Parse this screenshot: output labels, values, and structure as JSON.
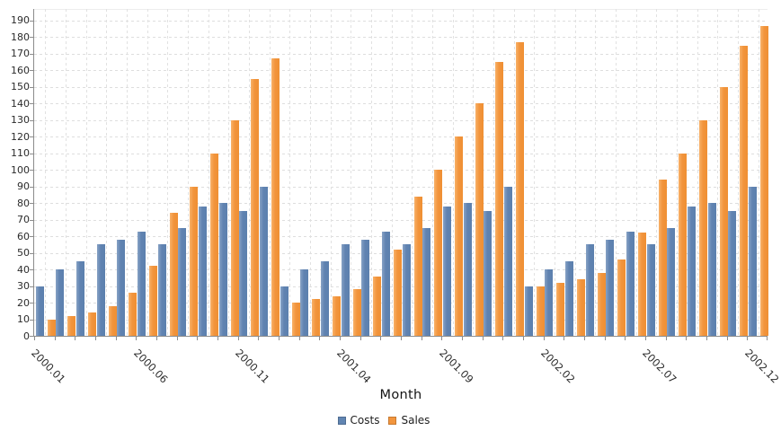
{
  "chart_data": {
    "type": "bar",
    "title": "",
    "xlabel": "Month",
    "ylabel": "",
    "ylim": [
      0,
      197
    ],
    "yticks": [
      0,
      10,
      20,
      30,
      40,
      50,
      60,
      70,
      80,
      90,
      100,
      110,
      120,
      130,
      140,
      150,
      160,
      170,
      180,
      190
    ],
    "grid": true,
    "legend_position": "bottom",
    "categories": [
      "2000.01",
      "2000.02",
      "2000.03",
      "2000.04",
      "2000.05",
      "2000.06",
      "2000.07",
      "2000.08",
      "2000.09",
      "2000.10",
      "2000.11",
      "2000.12",
      "2001.01",
      "2001.02",
      "2001.03",
      "2001.04",
      "2001.05",
      "2001.06",
      "2001.07",
      "2001.08",
      "2001.09",
      "2001.10",
      "2001.11",
      "2001.12",
      "2002.01",
      "2002.02",
      "2002.03",
      "2002.04",
      "2002.05",
      "2002.06",
      "2002.07",
      "2002.08",
      "2002.09",
      "2002.10",
      "2002.11",
      "2002.12"
    ],
    "xtick_labels": [
      "2000.01",
      "2000.06",
      "2000.11",
      "2001.04",
      "2001.09",
      "2002.02",
      "2002.07",
      "2002.12"
    ],
    "series": [
      {
        "name": "Costs",
        "color": "#6185b2",
        "values": [
          30,
          40,
          45,
          55,
          58,
          63,
          55,
          65,
          78,
          80,
          75,
          90,
          30,
          40,
          45,
          55,
          58,
          63,
          55,
          65,
          78,
          80,
          75,
          90,
          30,
          40,
          45,
          55,
          58,
          63,
          55,
          65,
          78,
          80,
          75,
          90
        ]
      },
      {
        "name": "Sales",
        "color": "#f2953d",
        "values": [
          10,
          12,
          14,
          18,
          26,
          42,
          74,
          90,
          110,
          130,
          155,
          167,
          20,
          22,
          24,
          28,
          36,
          52,
          84,
          100,
          120,
          140,
          165,
          177,
          30,
          32,
          34,
          38,
          46,
          62,
          94,
          110,
          130,
          150,
          175,
          187
        ]
      }
    ]
  }
}
